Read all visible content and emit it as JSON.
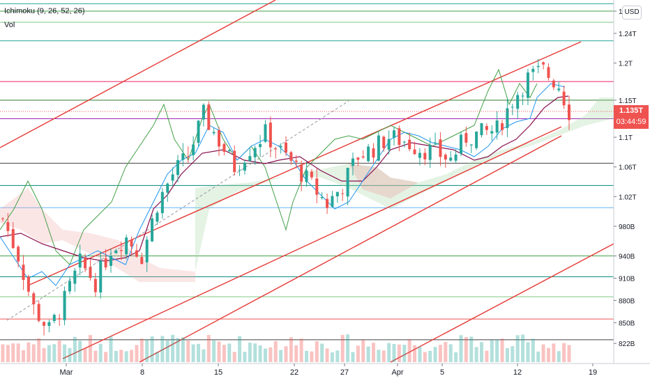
{
  "legend": {
    "indicator": "Ichimoku (9, 26, 52, 26)",
    "volume": "Vol"
  },
  "currency": "USD",
  "last_price": {
    "value": "1.135T",
    "countdown": "03:44:59",
    "color": "#ef5350"
  },
  "chart_data": {
    "type": "candlestick",
    "x_ticks": [
      "Mar",
      "8",
      "15",
      "22",
      "27",
      "Apr",
      "5",
      "12",
      "19"
    ],
    "y_ticks": [
      "822B",
      "850B",
      "880B",
      "910B",
      "940B",
      "980B",
      "1.02T",
      "1.06T",
      "1.1T",
      "1.15T",
      "1.2T",
      "1.24T",
      "1.27T"
    ],
    "y_range_billions": [
      795,
      1285
    ],
    "horizontal_levels": [
      {
        "value": 1280,
        "color": "#26a69a"
      },
      {
        "value": 1270,
        "color": "#43a047"
      },
      {
        "value": 1255,
        "color": "#81c784"
      },
      {
        "value": 1230,
        "color": "#26a69a"
      },
      {
        "value": 1175,
        "color": "#e91e63"
      },
      {
        "value": 1150,
        "color": "#2e7d32"
      },
      {
        "value": 1125,
        "color": "#9c27b0"
      },
      {
        "value": 1065,
        "color": "#424242"
      },
      {
        "value": 1035,
        "color": "#00897b"
      },
      {
        "value": 1005,
        "color": "#64b5f6"
      },
      {
        "value": 940,
        "color": "#43a047"
      },
      {
        "value": 912,
        "color": "#00897b"
      },
      {
        "value": 885,
        "color": "#81c784"
      },
      {
        "value": 855,
        "color": "#ef5350"
      },
      {
        "value": 827,
        "color": "#424242"
      }
    ],
    "close_path_billions": [
      [
        0,
        990
      ],
      [
        3,
        940
      ],
      [
        6,
        870
      ],
      [
        9,
        840
      ],
      [
        12,
        880
      ],
      [
        15,
        930
      ],
      [
        18,
        905
      ],
      [
        21,
        950
      ],
      [
        24,
        965
      ],
      [
        27,
        940
      ],
      [
        30,
        1010
      ],
      [
        33,
        1050
      ],
      [
        36,
        1075
      ],
      [
        39,
        1130
      ],
      [
        42,
        1095
      ],
      [
        45,
        1060
      ],
      [
        48,
        1085
      ],
      [
        51,
        1105
      ],
      [
        54,
        1080
      ],
      [
        57,
        1060
      ],
      [
        60,
        1035
      ],
      [
        63,
        1010
      ],
      [
        66,
        1035
      ],
      [
        69,
        1075
      ],
      [
        72,
        1085
      ],
      [
        75,
        1100
      ],
      [
        78,
        1095
      ],
      [
        81,
        1085
      ],
      [
        84,
        1080
      ],
      [
        87,
        1070
      ],
      [
        90,
        1100
      ],
      [
        93,
        1105
      ],
      [
        96,
        1110
      ],
      [
        99,
        1150
      ],
      [
        102,
        1180
      ],
      [
        105,
        1190
      ],
      [
        108,
        1170
      ],
      [
        110,
        1135
      ]
    ],
    "ichimoku": {
      "tenkan_color": "#2196f3",
      "kijun_color": "#880e4f",
      "chikou_color": "#43a047",
      "cloud_up": "#a5d6a7",
      "cloud_down": "#ef9a9a"
    },
    "volume_colors": {
      "up": "#26a69a",
      "down": "#ef5350"
    }
  }
}
